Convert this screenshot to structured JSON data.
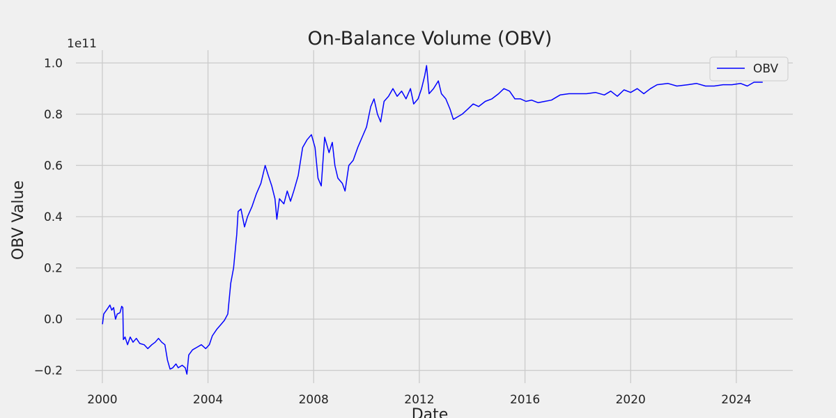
{
  "chart_data": {
    "type": "line",
    "title": "On-Balance Volume (OBV)",
    "xlabel": "Date",
    "ylabel": "OBV Value",
    "y_scale_label": "1e11",
    "y_scale": 100000000000,
    "xlim": [
      "1999-01-01",
      "2026-02-20"
    ],
    "ylim": [
      -0.25,
      1.05
    ],
    "x_ticks": [
      "2000",
      "2004",
      "2008",
      "2012",
      "2016",
      "2020",
      "2024"
    ],
    "y_ticks": [
      "−0.2",
      "0.0",
      "0.2",
      "0.4",
      "0.6",
      "0.8",
      "1.0"
    ],
    "y_tick_values": [
      -0.2,
      0.0,
      0.2,
      0.4,
      0.6,
      0.8,
      1.0
    ],
    "grid": true,
    "legend": {
      "location": "top-right",
      "entries": [
        "OBV"
      ]
    },
    "series": [
      {
        "name": "OBV",
        "color": "#0000ff",
        "points": [
          [
            "2000-01-03",
            -0.02
          ],
          [
            "2000-01-20",
            0.02
          ],
          [
            "2000-03-10",
            0.04
          ],
          [
            "2000-04-15",
            0.055
          ],
          [
            "2000-05-10",
            0.035
          ],
          [
            "2000-06-05",
            0.045
          ],
          [
            "2000-07-01",
            0.0
          ],
          [
            "2000-07-25",
            0.02
          ],
          [
            "2000-09-01",
            0.025
          ],
          [
            "2000-09-25",
            0.05
          ],
          [
            "2000-10-10",
            0.045
          ],
          [
            "2000-10-18",
            -0.08
          ],
          [
            "2000-11-10",
            -0.07
          ],
          [
            "2000-12-15",
            -0.1
          ],
          [
            "2001-01-20",
            -0.07
          ],
          [
            "2001-03-01",
            -0.09
          ],
          [
            "2001-04-15",
            -0.075
          ],
          [
            "2001-06-01",
            -0.095
          ],
          [
            "2001-08-01",
            -0.1
          ],
          [
            "2001-09-20",
            -0.115
          ],
          [
            "2001-11-15",
            -0.1
          ],
          [
            "2002-01-01",
            -0.09
          ],
          [
            "2002-02-15",
            -0.075
          ],
          [
            "2002-04-01",
            -0.09
          ],
          [
            "2002-05-15",
            -0.1
          ],
          [
            "2002-06-20",
            -0.16
          ],
          [
            "2002-07-25",
            -0.195
          ],
          [
            "2002-09-01",
            -0.19
          ],
          [
            "2002-10-15",
            -0.175
          ],
          [
            "2002-11-15",
            -0.19
          ],
          [
            "2003-01-10",
            -0.18
          ],
          [
            "2003-02-20",
            -0.19
          ],
          [
            "2003-03-15",
            -0.215
          ],
          [
            "2003-04-10",
            -0.14
          ],
          [
            "2003-06-01",
            -0.12
          ],
          [
            "2003-08-01",
            -0.11
          ],
          [
            "2003-10-01",
            -0.1
          ],
          [
            "2003-12-01",
            -0.115
          ],
          [
            "2004-01-20",
            -0.1
          ],
          [
            "2004-03-01",
            -0.065
          ],
          [
            "2004-05-01",
            -0.04
          ],
          [
            "2004-07-01",
            -0.02
          ],
          [
            "2004-08-15",
            -0.005
          ],
          [
            "2004-10-01",
            0.02
          ],
          [
            "2004-11-10",
            0.14
          ],
          [
            "2004-12-20",
            0.2
          ],
          [
            "2005-02-01",
            0.33
          ],
          [
            "2005-02-20",
            0.42
          ],
          [
            "2005-04-01",
            0.43
          ],
          [
            "2005-05-20",
            0.36
          ],
          [
            "2005-07-01",
            0.4
          ],
          [
            "2005-09-01",
            0.44
          ],
          [
            "2005-11-01",
            0.49
          ],
          [
            "2006-01-01",
            0.53
          ],
          [
            "2006-03-01",
            0.6
          ],
          [
            "2006-04-15",
            0.56
          ],
          [
            "2006-06-01",
            0.52
          ],
          [
            "2006-07-15",
            0.47
          ],
          [
            "2006-08-10",
            0.39
          ],
          [
            "2006-09-15",
            0.47
          ],
          [
            "2006-11-15",
            0.45
          ],
          [
            "2007-01-01",
            0.5
          ],
          [
            "2007-02-15",
            0.46
          ],
          [
            "2007-04-01",
            0.5
          ],
          [
            "2007-06-01",
            0.56
          ],
          [
            "2007-08-01",
            0.67
          ],
          [
            "2007-10-01",
            0.7
          ],
          [
            "2007-12-01",
            0.72
          ],
          [
            "2008-01-20",
            0.67
          ],
          [
            "2008-03-01",
            0.55
          ],
          [
            "2008-04-15",
            0.52
          ],
          [
            "2008-06-01",
            0.71
          ],
          [
            "2008-08-01",
            0.65
          ],
          [
            "2008-09-15",
            0.69
          ],
          [
            "2008-10-20",
            0.6
          ],
          [
            "2008-12-01",
            0.55
          ],
          [
            "2009-02-01",
            0.53
          ],
          [
            "2009-03-10",
            0.5
          ],
          [
            "2009-05-01",
            0.6
          ],
          [
            "2009-07-01",
            0.62
          ],
          [
            "2009-09-01",
            0.67
          ],
          [
            "2009-11-01",
            0.71
          ],
          [
            "2010-01-01",
            0.75
          ],
          [
            "2010-03-01",
            0.83
          ],
          [
            "2010-04-15",
            0.86
          ],
          [
            "2010-06-01",
            0.8
          ],
          [
            "2010-07-15",
            0.77
          ],
          [
            "2010-09-01",
            0.85
          ],
          [
            "2010-11-01",
            0.87
          ],
          [
            "2011-01-01",
            0.9
          ],
          [
            "2011-03-01",
            0.87
          ],
          [
            "2011-05-01",
            0.89
          ],
          [
            "2011-07-01",
            0.86
          ],
          [
            "2011-09-01",
            0.9
          ],
          [
            "2011-10-15",
            0.84
          ],
          [
            "2011-12-15",
            0.86
          ],
          [
            "2012-02-01",
            0.9
          ],
          [
            "2012-03-15",
            0.95
          ],
          [
            "2012-04-10",
            0.99
          ],
          [
            "2012-05-15",
            0.88
          ],
          [
            "2012-07-15",
            0.9
          ],
          [
            "2012-09-20",
            0.93
          ],
          [
            "2012-11-01",
            0.88
          ],
          [
            "2013-01-01",
            0.86
          ],
          [
            "2013-03-01",
            0.82
          ],
          [
            "2013-04-15",
            0.78
          ],
          [
            "2013-06-15",
            0.79
          ],
          [
            "2013-08-15",
            0.8
          ],
          [
            "2013-11-01",
            0.82
          ],
          [
            "2014-01-15",
            0.84
          ],
          [
            "2014-04-01",
            0.83
          ],
          [
            "2014-07-01",
            0.85
          ],
          [
            "2014-10-01",
            0.86
          ],
          [
            "2015-01-01",
            0.88
          ],
          [
            "2015-03-15",
            0.9
          ],
          [
            "2015-06-01",
            0.89
          ],
          [
            "2015-08-15",
            0.86
          ],
          [
            "2015-11-01",
            0.86
          ],
          [
            "2016-01-15",
            0.85
          ],
          [
            "2016-04-01",
            0.855
          ],
          [
            "2016-07-01",
            0.845
          ],
          [
            "2016-10-01",
            0.85
          ],
          [
            "2017-01-01",
            0.855
          ],
          [
            "2017-05-01",
            0.875
          ],
          [
            "2017-09-01",
            0.88
          ],
          [
            "2018-01-01",
            0.88
          ],
          [
            "2018-05-01",
            0.88
          ],
          [
            "2018-09-01",
            0.885
          ],
          [
            "2019-01-01",
            0.875
          ],
          [
            "2019-04-01",
            0.89
          ],
          [
            "2019-07-01",
            0.87
          ],
          [
            "2019-10-01",
            0.895
          ],
          [
            "2020-01-01",
            0.885
          ],
          [
            "2020-04-01",
            0.9
          ],
          [
            "2020-07-01",
            0.88
          ],
          [
            "2020-10-01",
            0.9
          ],
          [
            "2021-01-01",
            0.915
          ],
          [
            "2021-06-01",
            0.92
          ],
          [
            "2021-10-01",
            0.91
          ],
          [
            "2022-03-01",
            0.915
          ],
          [
            "2022-07-01",
            0.92
          ],
          [
            "2022-11-01",
            0.91
          ],
          [
            "2023-03-01",
            0.91
          ],
          [
            "2023-07-01",
            0.915
          ],
          [
            "2023-11-01",
            0.915
          ],
          [
            "2024-03-01",
            0.92
          ],
          [
            "2024-06-01",
            0.91
          ],
          [
            "2024-09-01",
            0.925
          ],
          [
            "2024-12-31",
            0.925
          ]
        ]
      }
    ]
  }
}
